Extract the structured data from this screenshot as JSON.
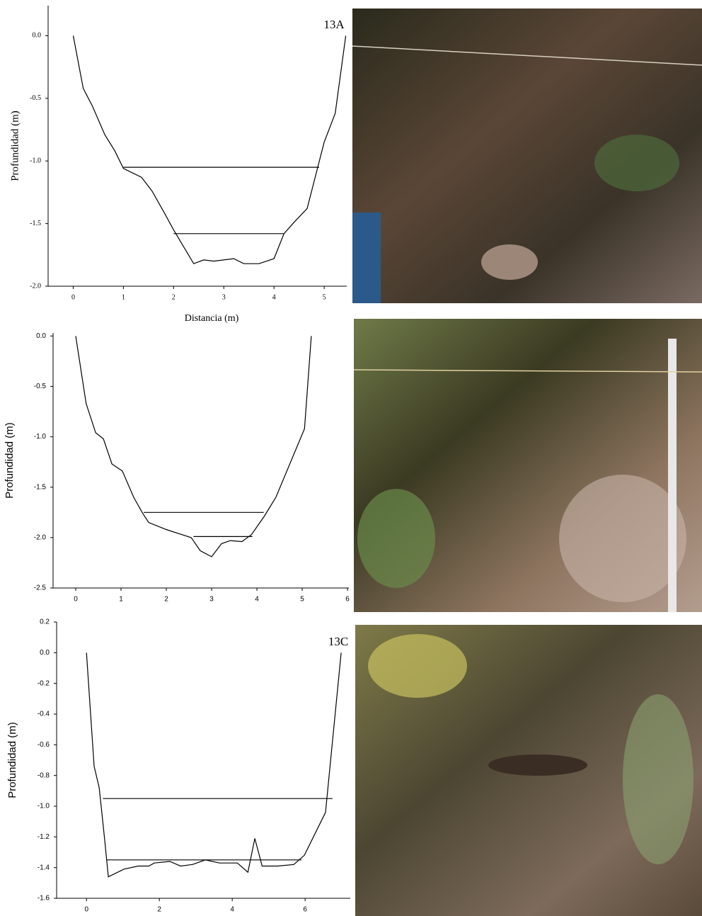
{
  "chart_data": [
    {
      "type": "line",
      "title": "13A",
      "y_label": "Profundidad (m)",
      "x_label": "Distancia (m)",
      "xlim": [
        -0.5,
        5.45
      ],
      "ylim": [
        -2.0,
        0.24
      ],
      "xticks": [
        0,
        1,
        2,
        3,
        4,
        5
      ],
      "yticks": [
        {
          "value": 0,
          "label": "0.0"
        },
        -0.5,
        {
          "value": -1,
          "label": "-1.0"
        },
        -1.5,
        {
          "value": -2,
          "label": "-2.0"
        }
      ],
      "series": [
        {
          "color": "#000000",
          "x": [
            0,
            0.2,
            0.38,
            0.63,
            0.83,
            1.0,
            1.36,
            1.57,
            1.81,
            2.0,
            2.4,
            2.6,
            2.8,
            3.2,
            3.4,
            3.7,
            4.0,
            4.2,
            4.4,
            4.66,
            5.0,
            5.22,
            5.43
          ],
          "values": [
            0,
            -0.42,
            -0.56,
            -0.79,
            -0.92,
            -1.06,
            -1.13,
            -1.24,
            -1.41,
            -1.55,
            -1.82,
            -1.79,
            -1.8,
            -1.78,
            -1.82,
            -1.82,
            -1.78,
            -1.58,
            -1.49,
            -1.38,
            -0.85,
            -0.62,
            0
          ]
        },
        {
          "color": "#000000",
          "x": [
            1.0,
            4.9
          ],
          "values": [
            -1.05,
            -1.05
          ]
        },
        {
          "color": "#000000",
          "x": [
            2.0,
            4.2
          ],
          "values": [
            -1.58,
            -1.58
          ]
        }
      ]
    },
    {
      "type": "line",
      "y_label": "Profundidad (m)",
      "xlim": [
        -0.5,
        6.03
      ],
      "ylim": [
        -2.5,
        0.03
      ],
      "xticks": [
        0,
        1,
        2,
        3,
        4,
        5,
        6
      ],
      "yticks": [
        {
          "value": 0,
          "label": "0.0"
        },
        -0.5,
        {
          "value": -1,
          "label": "-1.0"
        },
        -1.5,
        {
          "value": -2,
          "label": "-2.0"
        },
        -2.5
      ],
      "series": [
        {
          "color": "#000000",
          "x": [
            0,
            0.23,
            0.44,
            0.61,
            0.8,
            1.03,
            1.28,
            1.48,
            1.61,
            2.0,
            2.55,
            2.75,
            3.0,
            3.22,
            3.41,
            3.67,
            3.88,
            4.16,
            4.42,
            5.05,
            5.2
          ],
          "values": [
            0,
            -0.67,
            -0.96,
            -1.02,
            -1.27,
            -1.34,
            -1.6,
            -1.76,
            -1.85,
            -1.92,
            -2.0,
            -2.13,
            -2.19,
            -2.06,
            -2.03,
            -2.04,
            -1.97,
            -1.79,
            -1.6,
            -0.92,
            0
          ]
        },
        {
          "color": "#000000",
          "x": [
            1.5,
            4.15
          ],
          "values": [
            -1.75,
            -1.75
          ]
        },
        {
          "color": "#000000",
          "x": [
            2.6,
            3.9
          ],
          "values": [
            -1.99,
            -1.99
          ]
        }
      ]
    },
    {
      "type": "line",
      "title": "13C",
      "y_label": "Profundidad (m)",
      "xlim": [
        -0.82,
        7.24
      ],
      "ylim": [
        -1.6,
        0.2
      ],
      "xticks": [
        0,
        2,
        4,
        6
      ],
      "yticks": [
        0.2,
        {
          "value": 0,
          "label": "0.0"
        },
        -0.2,
        -0.4,
        -0.6,
        -0.8,
        {
          "value": -1,
          "label": "-1.0"
        },
        -1.2,
        -1.4,
        -1.6
      ],
      "series": [
        {
          "color": "#000000",
          "x": [
            0,
            0.21,
            0.35,
            0.49,
            0.6,
            1.03,
            1.42,
            1.71,
            1.86,
            2.29,
            2.58,
            2.91,
            3.26,
            3.65,
            4.14,
            4.43,
            4.62,
            4.82,
            5.24,
            5.69,
            5.98,
            6.56,
            6.99
          ],
          "values": [
            0,
            -0.74,
            -0.88,
            -1.2,
            -1.46,
            -1.41,
            -1.39,
            -1.39,
            -1.37,
            -1.36,
            -1.39,
            -1.38,
            -1.35,
            -1.37,
            -1.37,
            -1.43,
            -1.21,
            -1.39,
            -1.39,
            -1.38,
            -1.32,
            -1.04,
            0
          ]
        },
        {
          "color": "#000000",
          "x": [
            0.45,
            6.75
          ],
          "values": [
            -0.95,
            -0.95
          ]
        },
        {
          "color": "#000000",
          "x": [
            0.55,
            5.9
          ],
          "values": [
            -1.35,
            -1.35
          ]
        }
      ]
    }
  ]
}
